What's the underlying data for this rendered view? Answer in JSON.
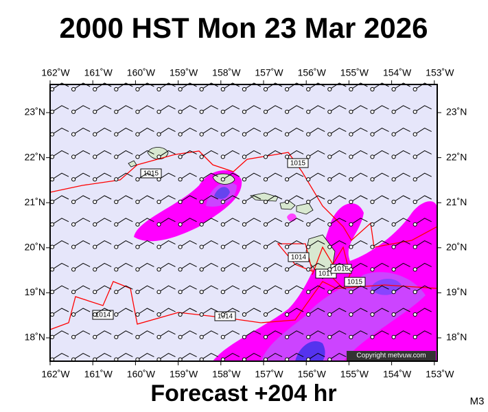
{
  "header": {
    "title": "2000 HST Mon 23 Mar 2026"
  },
  "map": {
    "lon_labels": [
      "162˚W",
      "161˚W",
      "160˚W",
      "159˚W",
      "158˚W",
      "157˚W",
      "156˚W",
      "155˚W",
      "154˚W",
      "153˚W"
    ],
    "lat_labels": [
      "23˚N",
      "22˚N",
      "21˚N",
      "20˚N",
      "19˚N",
      "18˚N"
    ],
    "isobar_labels": [
      "1015",
      "1015",
      "1014",
      "1014",
      "1014",
      "1017",
      "1016",
      "1015"
    ],
    "copyright": "Copyright metvuw.com"
  },
  "footer": {
    "forecast": "Forecast +204 hr",
    "model": "M3"
  }
}
